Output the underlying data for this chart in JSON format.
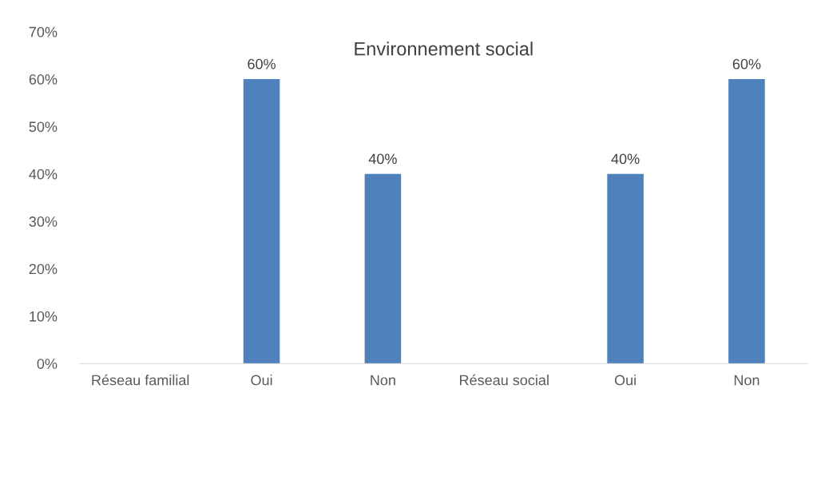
{
  "chart_data": {
    "type": "bar",
    "title": "Environnement social",
    "categories": [
      "Réseau familial",
      "Oui",
      "Non",
      "Réseau social",
      "Oui",
      "Non"
    ],
    "values": [
      null,
      60,
      40,
      null,
      40,
      60
    ],
    "value_labels": [
      null,
      "60%",
      "40%",
      null,
      "40%",
      "60%"
    ],
    "color": "#4f81bd",
    "ylim": [
      0,
      70
    ],
    "yticks": [
      {
        "value": 0,
        "label": "0%"
      },
      {
        "value": 10,
        "label": "10%"
      },
      {
        "value": 20,
        "label": "20%"
      },
      {
        "value": 30,
        "label": "30%"
      },
      {
        "value": 40,
        "label": "40%"
      },
      {
        "value": 50,
        "label": "50%"
      },
      {
        "value": 60,
        "label": "60%"
      },
      {
        "value": 70,
        "label": "70%"
      }
    ],
    "grid": false,
    "legend": false
  }
}
